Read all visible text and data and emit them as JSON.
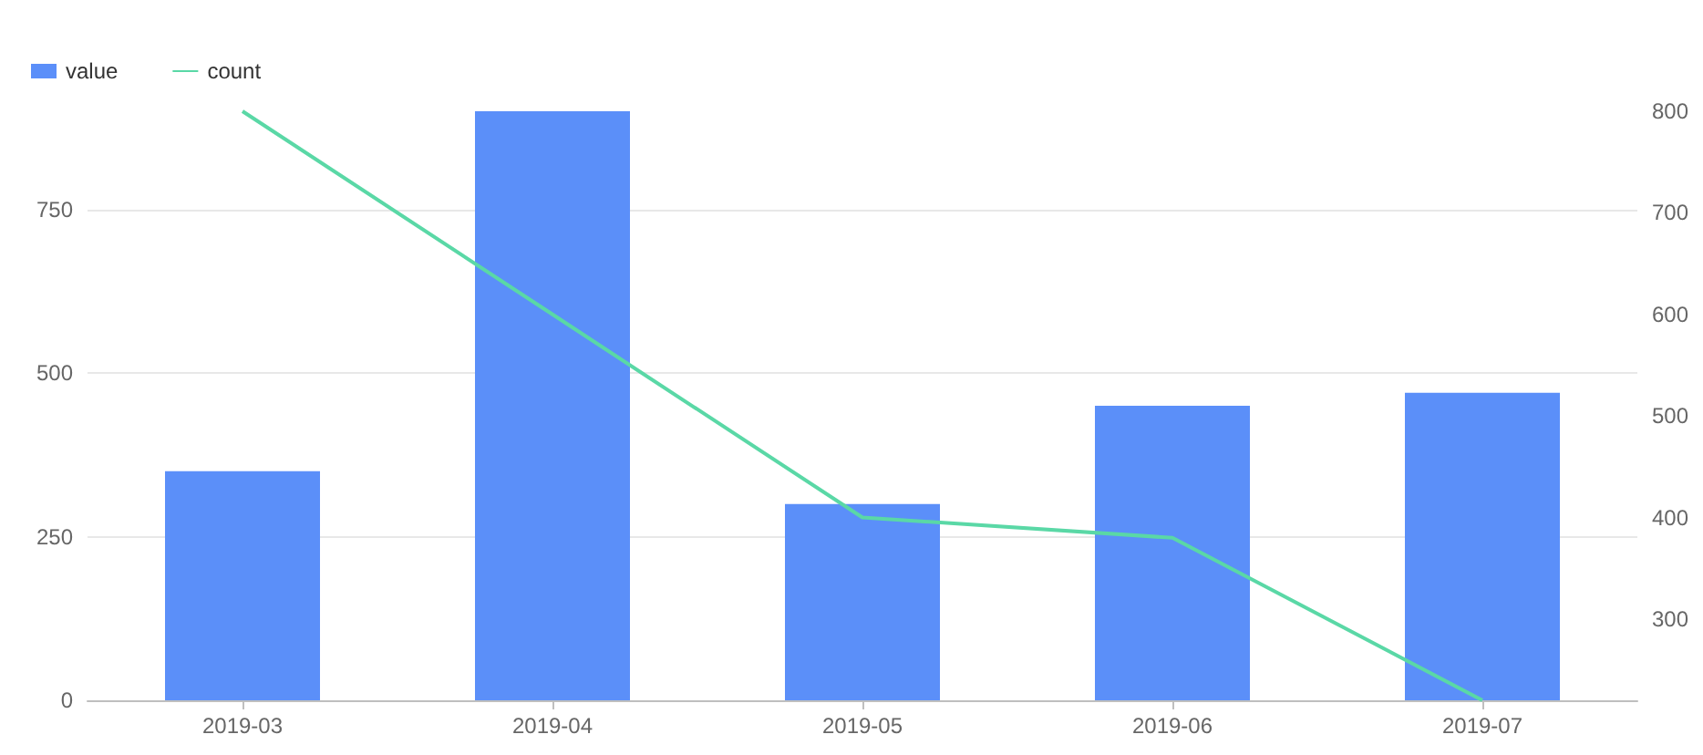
{
  "chart_data": {
    "type": "bar",
    "categories": [
      "2019-03",
      "2019-04",
      "2019-05",
      "2019-06",
      "2019-07"
    ],
    "series": [
      {
        "name": "value",
        "color": "#5b8ff9",
        "values": [
          350,
          900,
          300,
          450,
          470
        ]
      },
      {
        "name": "count",
        "type": "line",
        "axis": "y2",
        "color": "#5ad8a6",
        "values": [
          800,
          600,
          400,
          380,
          220
        ]
      }
    ],
    "ylim": [
      0,
      900
    ],
    "yticks": [
      0,
      250,
      500,
      750
    ],
    "y2lim": [
      220,
      800
    ],
    "y2ticks": [
      300,
      400,
      500,
      600,
      700,
      800
    ],
    "grid": "y",
    "legend": "top left",
    "marker": "none",
    "line_style": "solid"
  }
}
